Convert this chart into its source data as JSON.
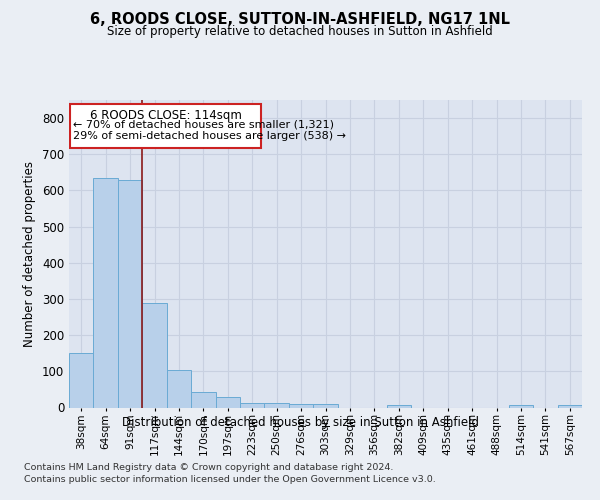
{
  "title": "6, ROODS CLOSE, SUTTON-IN-ASHFIELD, NG17 1NL",
  "subtitle": "Size of property relative to detached houses in Sutton in Ashfield",
  "xlabel": "Distribution of detached houses by size in Sutton in Ashfield",
  "ylabel": "Number of detached properties",
  "footer1": "Contains HM Land Registry data © Crown copyright and database right 2024.",
  "footer2": "Contains public sector information licensed under the Open Government Licence v3.0.",
  "bar_labels": [
    "38sqm",
    "64sqm",
    "91sqm",
    "117sqm",
    "144sqm",
    "170sqm",
    "197sqm",
    "223sqm",
    "250sqm",
    "276sqm",
    "303sqm",
    "329sqm",
    "356sqm",
    "382sqm",
    "409sqm",
    "435sqm",
    "461sqm",
    "488sqm",
    "514sqm",
    "541sqm",
    "567sqm"
  ],
  "bar_values": [
    150,
    635,
    628,
    288,
    103,
    42,
    28,
    12,
    12,
    10,
    10,
    0,
    0,
    8,
    0,
    0,
    0,
    0,
    8,
    0,
    8
  ],
  "bar_color": "#b8d0ea",
  "bar_edgecolor": "#6aaad4",
  "property_line_label": "6 ROODS CLOSE: 114sqm",
  "annotation_line1": "← 70% of detached houses are smaller (1,321)",
  "annotation_line2": "29% of semi-detached houses are larger (538) →",
  "vline_color": "#8b1a1a",
  "annotation_box_edgecolor": "#cc2222",
  "ylim": [
    0,
    850
  ],
  "yticks": [
    0,
    100,
    200,
    300,
    400,
    500,
    600,
    700,
    800
  ],
  "grid_color": "#c8d0e0",
  "bg_color": "#eaeef4",
  "plot_bg_color": "#dde4f0"
}
